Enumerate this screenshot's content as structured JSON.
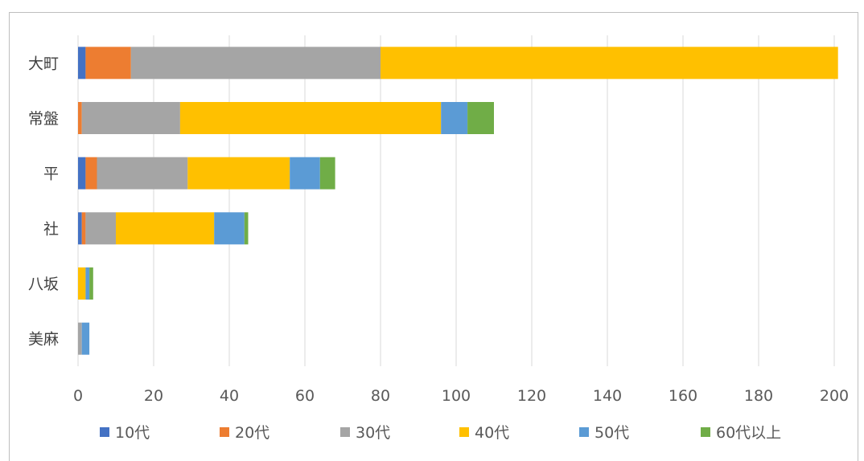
{
  "chart_data": {
    "type": "bar",
    "orientation": "horizontal",
    "stacked": true,
    "title": "",
    "title_partial": "",
    "categories": [
      "大町",
      "常盤",
      "平",
      "社",
      "八坂",
      "美麻"
    ],
    "series": [
      {
        "name": "10代",
        "color": "#4472C4",
        "values": [
          2,
          0,
          2,
          1,
          0,
          0
        ]
      },
      {
        "name": "20代",
        "color": "#ED7D31",
        "values": [
          12,
          1,
          3,
          1,
          0,
          0
        ]
      },
      {
        "name": "30代",
        "color": "#A5A5A5",
        "values": [
          66,
          26,
          24,
          8,
          0,
          1
        ]
      },
      {
        "name": "40代",
        "color": "#FFC000",
        "values": [
          121,
          69,
          27,
          26,
          2,
          0
        ]
      },
      {
        "name": "50代",
        "color": "#5B9BD5",
        "values": [
          0,
          7,
          8,
          8,
          1,
          2
        ]
      },
      {
        "name": "60代以上",
        "color": "#70AD47",
        "values": [
          0,
          7,
          4,
          1,
          1,
          0
        ]
      }
    ],
    "xlim": [
      0,
      200
    ],
    "xticks": [
      "0",
      "20",
      "40",
      "60",
      "80",
      "100",
      "120",
      "140",
      "160",
      "180",
      "200"
    ],
    "grid": true,
    "legend_position": "bottom"
  }
}
